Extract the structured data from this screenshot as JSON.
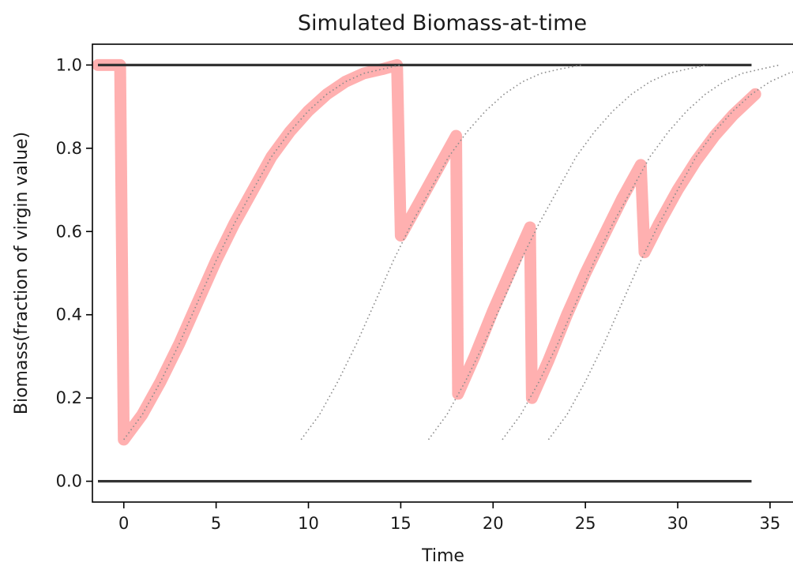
{
  "chart_data": {
    "type": "line",
    "title": "Simulated Biomass-at-time",
    "xlabel": "Time",
    "ylabel": "Biomass(fraction of virgin value)",
    "xlim": [
      -1.7,
      36.8
    ],
    "ylim": [
      -0.05,
      1.05
    ],
    "x_ticks": [
      0,
      5,
      10,
      15,
      20,
      25,
      30,
      35
    ],
    "y_ticks": [
      0.0,
      0.2,
      0.4,
      0.6,
      0.8,
      1.0
    ],
    "y_tick_labels": [
      "0.0",
      "0.2",
      "0.4",
      "0.6",
      "0.8",
      "1.0"
    ],
    "grid": false,
    "colors": {
      "simulated": "#ffb0b0",
      "reference": "#333333",
      "curves": "#8c8c8c"
    },
    "series": [
      {
        "style": "thick",
        "points": [
          [
            -1.4,
            1.0
          ],
          [
            -0.2,
            1.0
          ],
          [
            0,
            0.1
          ],
          [
            1,
            0.16
          ],
          [
            2,
            0.24
          ],
          [
            3,
            0.33
          ],
          [
            4,
            0.43
          ],
          [
            5,
            0.53
          ],
          [
            6,
            0.62
          ],
          [
            7,
            0.7
          ],
          [
            8,
            0.78
          ],
          [
            9,
            0.84
          ],
          [
            10,
            0.89
          ],
          [
            11,
            0.93
          ],
          [
            12,
            0.96
          ],
          [
            13,
            0.98
          ],
          [
            14,
            0.99
          ],
          [
            14.8,
            1.0
          ],
          [
            15,
            0.59
          ],
          [
            16,
            0.67
          ],
          [
            17,
            0.75
          ],
          [
            18,
            0.83
          ],
          [
            18.1,
            0.21
          ],
          [
            19,
            0.3
          ],
          [
            20,
            0.41
          ],
          [
            21,
            0.51
          ],
          [
            22,
            0.61
          ],
          [
            22.1,
            0.2
          ],
          [
            23,
            0.29
          ],
          [
            24,
            0.4
          ],
          [
            25,
            0.5
          ],
          [
            26,
            0.59
          ],
          [
            27,
            0.68
          ],
          [
            28,
            0.76
          ],
          [
            28.2,
            0.55
          ],
          [
            29,
            0.62
          ],
          [
            30,
            0.7
          ],
          [
            31,
            0.77
          ],
          [
            32,
            0.83
          ],
          [
            33,
            0.88
          ],
          [
            34.2,
            0.93
          ]
        ]
      },
      {
        "style": "reference",
        "points": [
          [
            -1.4,
            1.0
          ],
          [
            34,
            1.0
          ]
        ]
      },
      {
        "style": "reference",
        "points": [
          [
            -1.4,
            0.0
          ],
          [
            34,
            0.0
          ]
        ]
      },
      {
        "style": "dotted",
        "points": [
          [
            0,
            0.1
          ],
          [
            1,
            0.16
          ],
          [
            2,
            0.24
          ],
          [
            3,
            0.33
          ],
          [
            4,
            0.43
          ],
          [
            5,
            0.53
          ],
          [
            6,
            0.62
          ],
          [
            7,
            0.7
          ],
          [
            8,
            0.78
          ],
          [
            9,
            0.84
          ],
          [
            10,
            0.89
          ],
          [
            11,
            0.93
          ],
          [
            12,
            0.96
          ],
          [
            13,
            0.98
          ],
          [
            14,
            0.99
          ],
          [
            15,
            1.0
          ]
        ]
      },
      {
        "style": "dotted",
        "points": [
          [
            9.6,
            0.1
          ],
          [
            10.6,
            0.16
          ],
          [
            11.6,
            0.24
          ],
          [
            12.6,
            0.33
          ],
          [
            13.6,
            0.43
          ],
          [
            14.6,
            0.53
          ],
          [
            15.6,
            0.62
          ],
          [
            16.6,
            0.7
          ],
          [
            17.6,
            0.78
          ],
          [
            18.6,
            0.84
          ],
          [
            19.6,
            0.89
          ],
          [
            20.6,
            0.93
          ],
          [
            21.6,
            0.96
          ],
          [
            22.6,
            0.98
          ],
          [
            23.6,
            0.99
          ],
          [
            24.8,
            1.0
          ]
        ]
      },
      {
        "style": "dotted",
        "points": [
          [
            16.5,
            0.1
          ],
          [
            17.5,
            0.16
          ],
          [
            18.5,
            0.24
          ],
          [
            19.5,
            0.33
          ],
          [
            20.5,
            0.43
          ],
          [
            21.5,
            0.53
          ],
          [
            22.5,
            0.62
          ],
          [
            23.5,
            0.7
          ],
          [
            24.5,
            0.78
          ],
          [
            25.5,
            0.84
          ],
          [
            26.5,
            0.89
          ],
          [
            27.5,
            0.93
          ],
          [
            28.5,
            0.96
          ],
          [
            29.5,
            0.98
          ],
          [
            30.5,
            0.99
          ],
          [
            31.6,
            1.0
          ]
        ]
      },
      {
        "style": "dotted",
        "points": [
          [
            20.5,
            0.1
          ],
          [
            21.5,
            0.16
          ],
          [
            22.5,
            0.24
          ],
          [
            23.5,
            0.33
          ],
          [
            24.5,
            0.43
          ],
          [
            25.5,
            0.53
          ],
          [
            26.5,
            0.62
          ],
          [
            27.5,
            0.7
          ],
          [
            28.5,
            0.78
          ],
          [
            29.5,
            0.84
          ],
          [
            30.5,
            0.89
          ],
          [
            31.5,
            0.93
          ],
          [
            32.5,
            0.96
          ],
          [
            33.5,
            0.98
          ],
          [
            34.5,
            0.99
          ],
          [
            35.5,
            1.0
          ]
        ]
      },
      {
        "style": "dotted",
        "points": [
          [
            23,
            0.1
          ],
          [
            24,
            0.16
          ],
          [
            25,
            0.24
          ],
          [
            26,
            0.33
          ],
          [
            27,
            0.43
          ],
          [
            28,
            0.53
          ],
          [
            29,
            0.62
          ],
          [
            30,
            0.7
          ],
          [
            31,
            0.78
          ],
          [
            32,
            0.84
          ],
          [
            33,
            0.89
          ],
          [
            34,
            0.93
          ],
          [
            35,
            0.96
          ],
          [
            36,
            0.98
          ],
          [
            36.8,
            0.99
          ]
        ]
      }
    ]
  }
}
